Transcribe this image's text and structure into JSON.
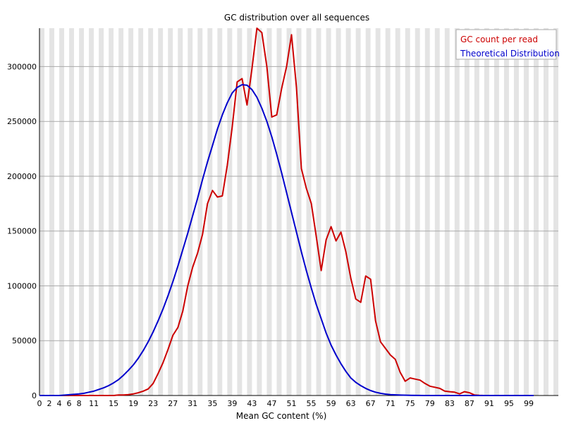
{
  "chart_data": {
    "type": "line",
    "title": "GC distribution over all sequences",
    "xlabel": "Mean GC content (%)",
    "ylabel": "",
    "xlim": [
      0,
      100
    ],
    "ylim": [
      0,
      335000
    ],
    "x_ticks": [
      "0",
      "2",
      "4",
      "6",
      "8",
      "11",
      "15",
      "19",
      "23",
      "27",
      "31",
      "35",
      "39",
      "43",
      "47",
      "51",
      "55",
      "59",
      "63",
      "67",
      "71",
      "75",
      "79",
      "83",
      "87",
      "91",
      "95",
      "99"
    ],
    "y_ticks": [
      0,
      50000,
      100000,
      150000,
      200000,
      250000,
      300000
    ],
    "grid": "horizontal lines with alternating grey/white vertical bands",
    "legend_position": "top-right",
    "series": [
      {
        "name": "GC count per read",
        "color": "#cc0000",
        "points": [
          [
            0,
            0
          ],
          [
            6,
            0
          ],
          [
            10,
            0
          ],
          [
            13,
            0
          ],
          [
            15,
            0
          ],
          [
            16,
            500
          ],
          [
            17,
            500
          ],
          [
            18,
            800
          ],
          [
            19,
            1500
          ],
          [
            20,
            2500
          ],
          [
            21,
            4000
          ],
          [
            22,
            6000
          ],
          [
            23,
            11000
          ],
          [
            24,
            20000
          ],
          [
            25,
            30000
          ],
          [
            26,
            42000
          ],
          [
            27,
            55000
          ],
          [
            28,
            62000
          ],
          [
            29,
            77000
          ],
          [
            30,
            100000
          ],
          [
            31,
            117000
          ],
          [
            32,
            130000
          ],
          [
            33,
            147000
          ],
          [
            34,
            175000
          ],
          [
            35,
            187000
          ],
          [
            36,
            181000
          ],
          [
            37,
            182000
          ],
          [
            38,
            210000
          ],
          [
            39,
            245000
          ],
          [
            40,
            286000
          ],
          [
            41,
            289000
          ],
          [
            42,
            265000
          ],
          [
            43,
            298000
          ],
          [
            44,
            335000
          ],
          [
            45,
            331000
          ],
          [
            46,
            300000
          ],
          [
            47,
            254000
          ],
          [
            48,
            256000
          ],
          [
            49,
            280000
          ],
          [
            50,
            300000
          ],
          [
            51,
            329000
          ],
          [
            52,
            281000
          ],
          [
            53,
            207000
          ],
          [
            54,
            189000
          ],
          [
            55,
            175000
          ],
          [
            56,
            145000
          ],
          [
            57,
            114000
          ],
          [
            58,
            142000
          ],
          [
            59,
            154000
          ],
          [
            60,
            141000
          ],
          [
            61,
            149000
          ],
          [
            62,
            131000
          ],
          [
            63,
            107000
          ],
          [
            64,
            88000
          ],
          [
            65,
            85000
          ],
          [
            66,
            109000
          ],
          [
            67,
            106000
          ],
          [
            68,
            68000
          ],
          [
            69,
            49000
          ],
          [
            70,
            43000
          ],
          [
            71,
            37000
          ],
          [
            72,
            33000
          ],
          [
            73,
            21000
          ],
          [
            74,
            13000
          ],
          [
            75,
            16000
          ],
          [
            76,
            15000
          ],
          [
            77,
            14000
          ],
          [
            78,
            11000
          ],
          [
            79,
            8500
          ],
          [
            80,
            7500
          ],
          [
            81,
            6500
          ],
          [
            82,
            4000
          ],
          [
            83,
            3500
          ],
          [
            84,
            3000
          ],
          [
            85,
            1500
          ],
          [
            86,
            3500
          ],
          [
            87,
            2500
          ],
          [
            88,
            500
          ],
          [
            89,
            200
          ],
          [
            90,
            0
          ],
          [
            95,
            0
          ],
          [
            100,
            0
          ]
        ]
      },
      {
        "name": "Theoretical Distribution",
        "color": "#0000cc",
        "points": [
          [
            0,
            0
          ],
          [
            4,
            0
          ],
          [
            6,
            700
          ],
          [
            8,
            1500
          ],
          [
            9,
            2000
          ],
          [
            10,
            3000
          ],
          [
            11,
            4000
          ],
          [
            12,
            5500
          ],
          [
            13,
            7000
          ],
          [
            14,
            9000
          ],
          [
            15,
            11500
          ],
          [
            16,
            14500
          ],
          [
            17,
            18500
          ],
          [
            18,
            23000
          ],
          [
            19,
            28000
          ],
          [
            20,
            34000
          ],
          [
            21,
            41000
          ],
          [
            22,
            49000
          ],
          [
            23,
            58000
          ],
          [
            24,
            68000
          ],
          [
            25,
            79000
          ],
          [
            26,
            91000
          ],
          [
            27,
            104000
          ],
          [
            28,
            118000
          ],
          [
            29,
            133000
          ],
          [
            30,
            148000
          ],
          [
            31,
            164000
          ],
          [
            32,
            180000
          ],
          [
            33,
            197000
          ],
          [
            34,
            213000
          ],
          [
            35,
            228000
          ],
          [
            36,
            243000
          ],
          [
            37,
            256000
          ],
          [
            38,
            267000
          ],
          [
            39,
            276000
          ],
          [
            40,
            281000
          ],
          [
            41,
            283500
          ],
          [
            42,
            283000
          ],
          [
            43,
            279000
          ],
          [
            44,
            272000
          ],
          [
            45,
            262000
          ],
          [
            46,
            250000
          ],
          [
            47,
            236000
          ],
          [
            48,
            220000
          ],
          [
            49,
            203000
          ],
          [
            50,
            185000
          ],
          [
            51,
            167000
          ],
          [
            52,
            149000
          ],
          [
            53,
            131000
          ],
          [
            54,
            114000
          ],
          [
            55,
            98000
          ],
          [
            56,
            83000
          ],
          [
            57,
            70000
          ],
          [
            58,
            57000
          ],
          [
            59,
            46000
          ],
          [
            60,
            37000
          ],
          [
            61,
            29000
          ],
          [
            62,
            22000
          ],
          [
            63,
            16000
          ],
          [
            64,
            12000
          ],
          [
            65,
            9000
          ],
          [
            66,
            6500
          ],
          [
            67,
            4500
          ],
          [
            68,
            3000
          ],
          [
            69,
            2000
          ],
          [
            70,
            1300
          ],
          [
            71,
            800
          ],
          [
            73,
            400
          ],
          [
            75,
            200
          ],
          [
            78,
            0
          ],
          [
            85,
            0
          ],
          [
            100,
            0
          ]
        ]
      }
    ]
  }
}
